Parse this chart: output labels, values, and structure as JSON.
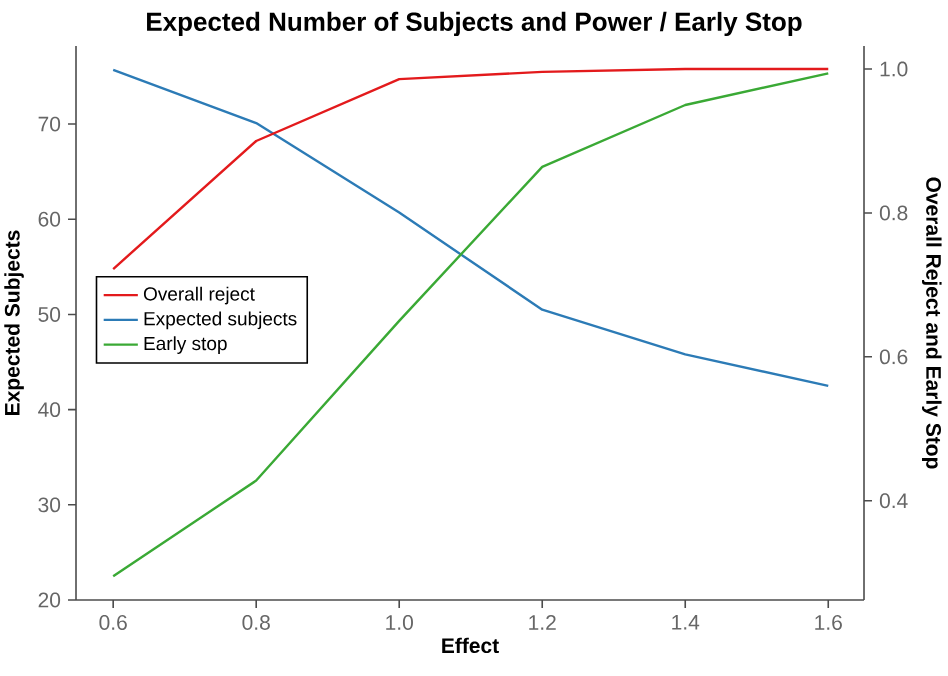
{
  "chart_data": {
    "type": "line",
    "title": "Expected Number of Subjects and Power / Early Stop",
    "xlabel": "Effect",
    "ylabel": "Expected Subjects",
    "y2label": "Overall Reject and Early Stop",
    "x": [
      0.6,
      0.8,
      1.0,
      1.2,
      1.4,
      1.6
    ],
    "series": [
      {
        "name": "Overall reject",
        "color": "#e31a1c",
        "axis": "y2",
        "values": [
          0.722,
          0.9,
          0.986,
          0.996,
          1.0,
          1.0
        ]
      },
      {
        "name": "Expected subjects",
        "color": "#2c7bb6",
        "axis": "y",
        "values": [
          75.7,
          70.1,
          60.7,
          50.5,
          45.8,
          42.5
        ]
      },
      {
        "name": "Early stop",
        "color": "#3aa935",
        "axis": "y2",
        "values": [
          0.295,
          0.428,
          0.65,
          0.864,
          0.95,
          0.994
        ]
      }
    ],
    "xlim": [
      0.548,
      1.65
    ],
    "xticks": [
      0.6,
      0.8,
      {
        "value": 1.0,
        "label": "1.0"
      },
      1.2,
      1.4,
      1.6
    ],
    "ylim": [
      20,
      78.2
    ],
    "yticks": [
      20,
      30,
      40,
      50,
      60,
      70
    ],
    "y2lim": [
      0.262,
      1.032
    ],
    "y2ticks": [
      0.4,
      0.6,
      0.8,
      {
        "value": 1.0,
        "label": "1.0"
      }
    ],
    "legend": "left",
    "grid": false,
    "marker": "none",
    "line_style": "solid"
  }
}
